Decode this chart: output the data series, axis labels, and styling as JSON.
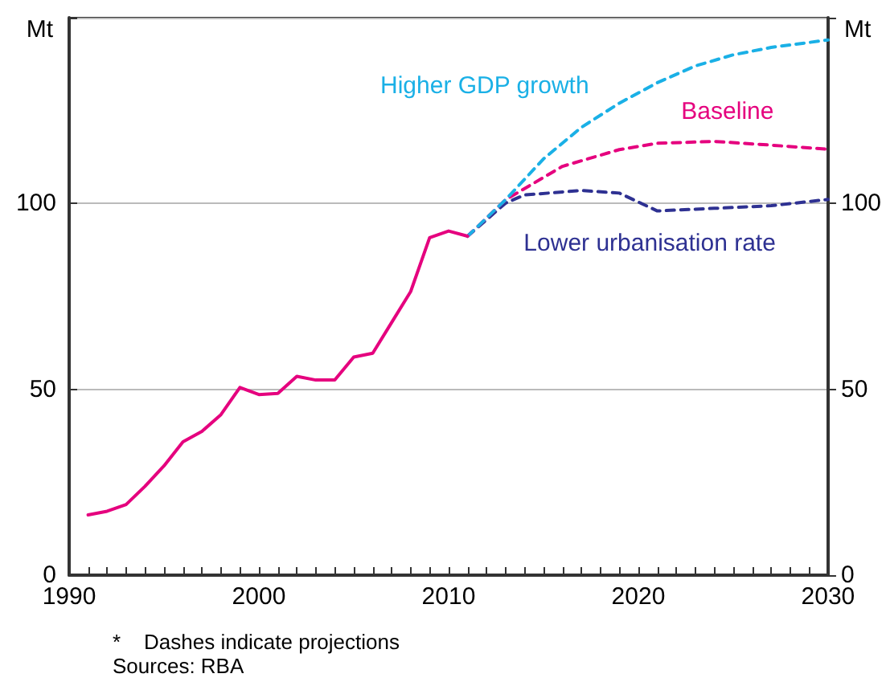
{
  "chart_data": {
    "type": "line",
    "ylabel": "Mt",
    "y2label": "Mt",
    "xlim": [
      1990,
      2030
    ],
    "xticks": [
      1990,
      {
        "value": 1991,
        "label": null
      },
      {
        "value": 1992,
        "label": null
      },
      {
        "value": 1993,
        "label": null
      },
      {
        "value": 1994,
        "label": null
      },
      {
        "value": 1995,
        "label": null
      },
      {
        "value": 1996,
        "label": null
      },
      {
        "value": 1997,
        "label": null
      },
      {
        "value": 1998,
        "label": null
      },
      {
        "value": 1999,
        "label": null
      },
      2000,
      {
        "value": 2001,
        "label": null
      },
      {
        "value": 2002,
        "label": null
      },
      {
        "value": 2003,
        "label": null
      },
      {
        "value": 2004,
        "label": null
      },
      {
        "value": 2005,
        "label": null
      },
      {
        "value": 2006,
        "label": null
      },
      {
        "value": 2007,
        "label": null
      },
      {
        "value": 2008,
        "label": null
      },
      {
        "value": 2009,
        "label": null
      },
      2010,
      {
        "value": 2011,
        "label": null
      },
      {
        "value": 2012,
        "label": null
      },
      {
        "value": 2013,
        "label": null
      },
      {
        "value": 2014,
        "label": null
      },
      {
        "value": 2015,
        "label": null
      },
      {
        "value": 2016,
        "label": null
      },
      {
        "value": 2017,
        "label": null
      },
      {
        "value": 2018,
        "label": null
      },
      {
        "value": 2019,
        "label": null
      },
      2020,
      {
        "value": 2021,
        "label": null
      },
      {
        "value": 2022,
        "label": null
      },
      {
        "value": 2023,
        "label": null
      },
      {
        "value": 2024,
        "label": null
      },
      {
        "value": 2025,
        "label": null
      },
      {
        "value": 2026,
        "label": null
      },
      {
        "value": 2027,
        "label": null
      },
      {
        "value": 2028,
        "label": null
      },
      {
        "value": 2029,
        "label": null
      },
      2030
    ],
    "ylim": [
      0,
      150
    ],
    "yticks": [
      0,
      50,
      100,
      {
        "value": 150,
        "label": null
      }
    ],
    "y2lim": [
      0,
      150
    ],
    "y2ticks": [
      0,
      50,
      100,
      {
        "value": 150,
        "label": null
      }
    ],
    "grid": "y",
    "marker": "none",
    "series": [
      {
        "color": "#e5007e",
        "line_style": "solid",
        "x": [
          1991,
          1992,
          1993,
          1994,
          1995,
          1996,
          1997,
          1998,
          1999,
          2000,
          2001,
          2002,
          2003,
          2004,
          2005,
          2006,
          2007,
          2008,
          2009,
          2010,
          2011
        ],
        "values": [
          16.2,
          17.2,
          19.0,
          23.9,
          29.4,
          35.9,
          38.7,
          43.2,
          50.5,
          48.6,
          48.9,
          53.5,
          52.5,
          52.5,
          58.7,
          59.7,
          68.0,
          76.3,
          90.8,
          92.6,
          91.2
        ]
      },
      {
        "name": "Higher GDP growth",
        "color": "#1ab0e6",
        "line_style": "dashed",
        "x": [
          2011,
          2013,
          2015,
          2017,
          2019,
          2021,
          2023,
          2025,
          2027,
          2030
        ],
        "values": [
          91.2,
          101,
          112,
          120.5,
          127,
          132.5,
          137,
          140,
          142,
          144
        ]
      },
      {
        "name": "Baseline",
        "color": "#e5007e",
        "line_style": "dashed",
        "x": [
          2011,
          2013,
          2016,
          2019,
          2021,
          2024,
          2027,
          2030
        ],
        "values": [
          91.2,
          101,
          110,
          114.5,
          116.2,
          116.7,
          115.7,
          114.6
        ]
      },
      {
        "name": "Lower urbanisation rate",
        "color": "#2e3192",
        "line_style": "dashed",
        "x": [
          2011,
          2013,
          2014,
          2017,
          2019,
          2021,
          2024,
          2027,
          2030
        ],
        "values": [
          91.2,
          100.1,
          102.3,
          103.5,
          102.8,
          98.0,
          98.7,
          99.4,
          101.1
        ]
      }
    ],
    "annotations": [
      "*    Dashes indicate projections",
      "Sources: RBA"
    ]
  }
}
